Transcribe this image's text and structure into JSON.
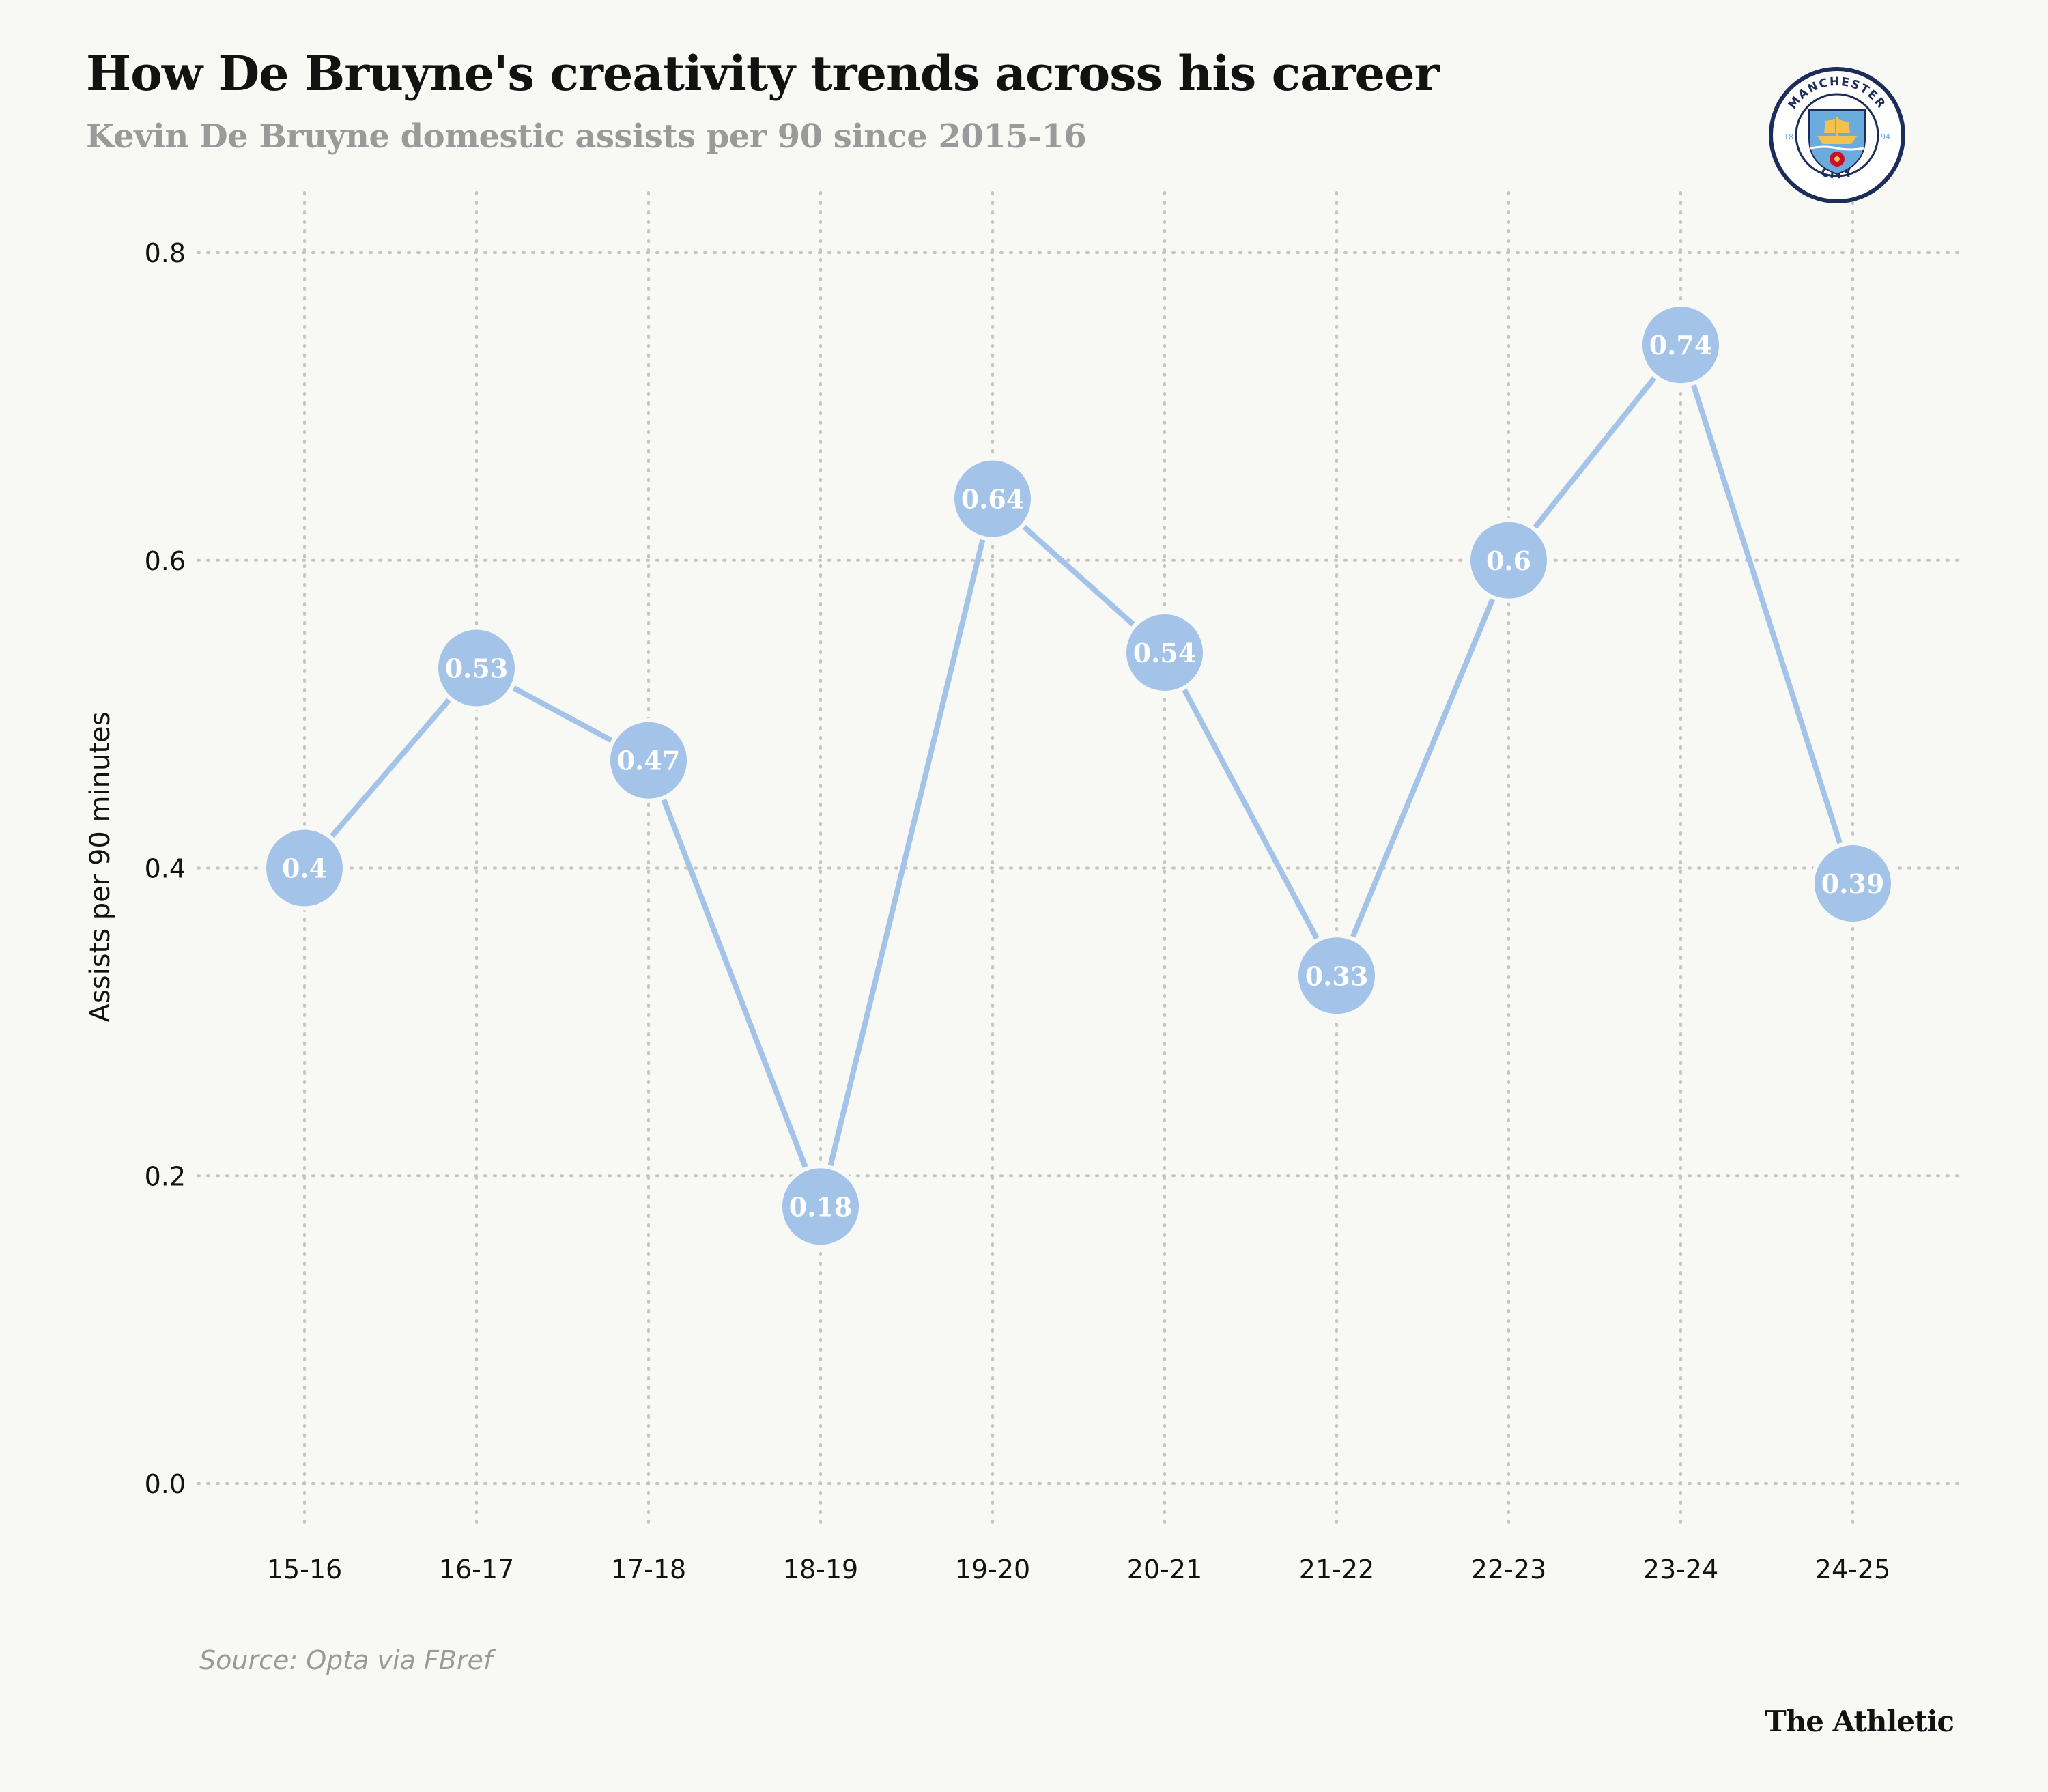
{
  "header": {
    "title": "How De Bruyne's creativity trends across his career",
    "subtitle": "Kevin De Bruyne domestic assists per 90 since 2015-16"
  },
  "footer": {
    "source": "Source: Opta via FBref",
    "brand": "The Athletic"
  },
  "logo": {
    "icon": "manchester-city-crest-icon",
    "ring_text_top": "MANCHESTER",
    "ring_text_bottom": "CITY",
    "year_left": "18",
    "year_right": "94"
  },
  "colors": {
    "background": "#f8f8f5",
    "series": "#a3c4e8",
    "grid": "#c4c4c4",
    "label_text": "#ffffff",
    "crest_navy": "#1c2c5b",
    "crest_sky": "#6cabdd",
    "crest_gold": "#f2c14e",
    "crest_red": "#c8102e"
  },
  "chart_data": {
    "type": "line",
    "title": "How De Bruyne's creativity trends across his career",
    "subtitle": "Kevin De Bruyne domestic assists per 90 since 2015-16",
    "xlabel": "",
    "ylabel": "Assists per 90 minutes",
    "categories": [
      "15-16",
      "16-17",
      "17-18",
      "18-19",
      "19-20",
      "20-21",
      "21-22",
      "22-23",
      "23-24",
      "24-25"
    ],
    "values": [
      0.4,
      0.53,
      0.47,
      0.18,
      0.64,
      0.54,
      0.33,
      0.6,
      0.74,
      0.39
    ],
    "point_labels": [
      "0.4",
      "0.53",
      "0.47",
      "0.18",
      "0.64",
      "0.54",
      "0.33",
      "0.6",
      "0.74",
      "0.39"
    ],
    "ylim": [
      0,
      0.8
    ],
    "yticks": [
      0,
      0.2,
      0.4,
      0.6,
      0.8
    ],
    "ytick_labels": [
      "0.0",
      "0.2",
      "0.4",
      "0.6",
      "0.8"
    ],
    "grid": true,
    "grid_style": "dotted",
    "legend": "none",
    "markers": "circle with value label"
  }
}
